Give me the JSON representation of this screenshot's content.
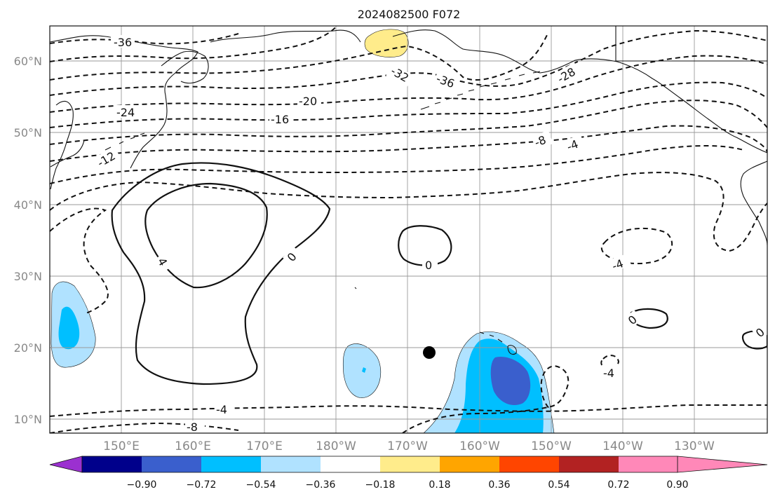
{
  "title": "2024082500 F072",
  "latitude_labels": [
    "60°N",
    "50°N",
    "40°N",
    "30°N",
    "20°N",
    "10°N"
  ],
  "longitude_labels": [
    "150°E",
    "160°E",
    "170°E",
    "180°W",
    "170°W",
    "160°W",
    "150°W",
    "140°W",
    "130°W"
  ],
  "colorbar": {
    "tick_labels": [
      "−0.90",
      "−0.72",
      "−0.54",
      "−0.36",
      "−0.18",
      "0.18",
      "0.36",
      "0.54",
      "0.72",
      "0.90"
    ],
    "colors": [
      "#9b30d0",
      "#00008b",
      "#3a5fcd",
      "#00bfff",
      "#b0e2ff",
      "#ffffff",
      "#ffec8b",
      "#ffa500",
      "#ff4500",
      "#b22222",
      "#ff88b8"
    ]
  },
  "contour_labels": {
    "c1": "-36",
    "c2": "-32",
    "c3": "-36",
    "c4": "-28",
    "c5": "-24",
    "c6": "-20",
    "c7": "-16",
    "c8": "-12",
    "c9": "-8",
    "c10": "-4",
    "c11": "0",
    "c12": "0",
    "c13": "4",
    "c14": "-4",
    "c15": "-4",
    "c16": "0",
    "c17": "0",
    "c18": "-4",
    "c19": "-8"
  },
  "shading_colors": {
    "light_blue": "#b0e2ff",
    "blue": "#00bfff",
    "dark_blue": "#3a5fcd",
    "yellow": "#ffec8b"
  }
}
